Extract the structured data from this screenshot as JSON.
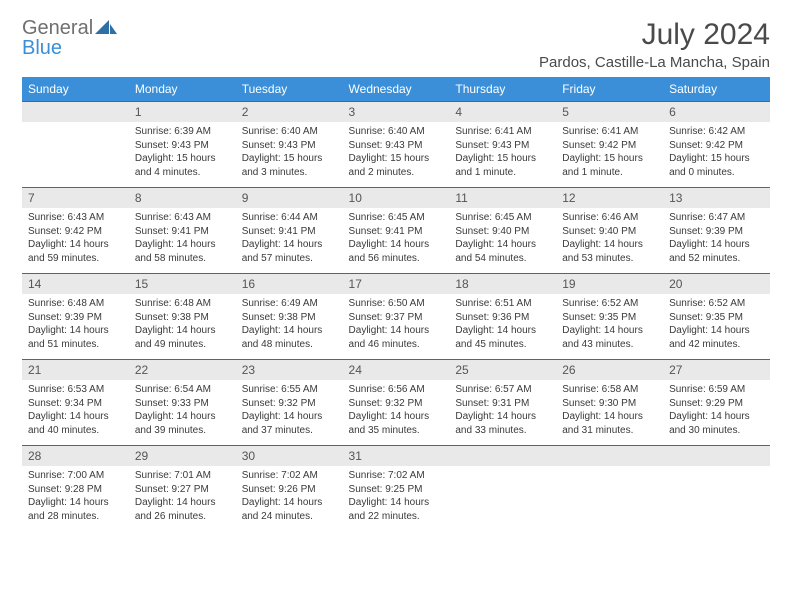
{
  "logo": {
    "general": "General",
    "blue": "Blue",
    "sail_color": "#2e6fa5"
  },
  "title": "July 2024",
  "location": "Pardos, Castille-La Mancha, Spain",
  "colors": {
    "header_bg": "#3a8fd8",
    "header_fg": "#ffffff",
    "daynum_bg": "#e9e9e9",
    "daynum_border": "#2e6fa5",
    "text": "#3a3a3a",
    "title_color": "#4a4a4a"
  },
  "day_headers": [
    "Sunday",
    "Monday",
    "Tuesday",
    "Wednesday",
    "Thursday",
    "Friday",
    "Saturday"
  ],
  "weeks": [
    {
      "nums": [
        "",
        "1",
        "2",
        "3",
        "4",
        "5",
        "6"
      ],
      "cells": [
        {
          "empty": true
        },
        {
          "sunrise": "Sunrise: 6:39 AM",
          "sunset": "Sunset: 9:43 PM",
          "day1": "Daylight: 15 hours",
          "day2": "and 4 minutes."
        },
        {
          "sunrise": "Sunrise: 6:40 AM",
          "sunset": "Sunset: 9:43 PM",
          "day1": "Daylight: 15 hours",
          "day2": "and 3 minutes."
        },
        {
          "sunrise": "Sunrise: 6:40 AM",
          "sunset": "Sunset: 9:43 PM",
          "day1": "Daylight: 15 hours",
          "day2": "and 2 minutes."
        },
        {
          "sunrise": "Sunrise: 6:41 AM",
          "sunset": "Sunset: 9:43 PM",
          "day1": "Daylight: 15 hours",
          "day2": "and 1 minute."
        },
        {
          "sunrise": "Sunrise: 6:41 AM",
          "sunset": "Sunset: 9:42 PM",
          "day1": "Daylight: 15 hours",
          "day2": "and 1 minute."
        },
        {
          "sunrise": "Sunrise: 6:42 AM",
          "sunset": "Sunset: 9:42 PM",
          "day1": "Daylight: 15 hours",
          "day2": "and 0 minutes."
        }
      ]
    },
    {
      "nums": [
        "7",
        "8",
        "9",
        "10",
        "11",
        "12",
        "13"
      ],
      "cells": [
        {
          "sunrise": "Sunrise: 6:43 AM",
          "sunset": "Sunset: 9:42 PM",
          "day1": "Daylight: 14 hours",
          "day2": "and 59 minutes."
        },
        {
          "sunrise": "Sunrise: 6:43 AM",
          "sunset": "Sunset: 9:41 PM",
          "day1": "Daylight: 14 hours",
          "day2": "and 58 minutes."
        },
        {
          "sunrise": "Sunrise: 6:44 AM",
          "sunset": "Sunset: 9:41 PM",
          "day1": "Daylight: 14 hours",
          "day2": "and 57 minutes."
        },
        {
          "sunrise": "Sunrise: 6:45 AM",
          "sunset": "Sunset: 9:41 PM",
          "day1": "Daylight: 14 hours",
          "day2": "and 56 minutes."
        },
        {
          "sunrise": "Sunrise: 6:45 AM",
          "sunset": "Sunset: 9:40 PM",
          "day1": "Daylight: 14 hours",
          "day2": "and 54 minutes."
        },
        {
          "sunrise": "Sunrise: 6:46 AM",
          "sunset": "Sunset: 9:40 PM",
          "day1": "Daylight: 14 hours",
          "day2": "and 53 minutes."
        },
        {
          "sunrise": "Sunrise: 6:47 AM",
          "sunset": "Sunset: 9:39 PM",
          "day1": "Daylight: 14 hours",
          "day2": "and 52 minutes."
        }
      ]
    },
    {
      "nums": [
        "14",
        "15",
        "16",
        "17",
        "18",
        "19",
        "20"
      ],
      "cells": [
        {
          "sunrise": "Sunrise: 6:48 AM",
          "sunset": "Sunset: 9:39 PM",
          "day1": "Daylight: 14 hours",
          "day2": "and 51 minutes."
        },
        {
          "sunrise": "Sunrise: 6:48 AM",
          "sunset": "Sunset: 9:38 PM",
          "day1": "Daylight: 14 hours",
          "day2": "and 49 minutes."
        },
        {
          "sunrise": "Sunrise: 6:49 AM",
          "sunset": "Sunset: 9:38 PM",
          "day1": "Daylight: 14 hours",
          "day2": "and 48 minutes."
        },
        {
          "sunrise": "Sunrise: 6:50 AM",
          "sunset": "Sunset: 9:37 PM",
          "day1": "Daylight: 14 hours",
          "day2": "and 46 minutes."
        },
        {
          "sunrise": "Sunrise: 6:51 AM",
          "sunset": "Sunset: 9:36 PM",
          "day1": "Daylight: 14 hours",
          "day2": "and 45 minutes."
        },
        {
          "sunrise": "Sunrise: 6:52 AM",
          "sunset": "Sunset: 9:35 PM",
          "day1": "Daylight: 14 hours",
          "day2": "and 43 minutes."
        },
        {
          "sunrise": "Sunrise: 6:52 AM",
          "sunset": "Sunset: 9:35 PM",
          "day1": "Daylight: 14 hours",
          "day2": "and 42 minutes."
        }
      ]
    },
    {
      "nums": [
        "21",
        "22",
        "23",
        "24",
        "25",
        "26",
        "27"
      ],
      "cells": [
        {
          "sunrise": "Sunrise: 6:53 AM",
          "sunset": "Sunset: 9:34 PM",
          "day1": "Daylight: 14 hours",
          "day2": "and 40 minutes."
        },
        {
          "sunrise": "Sunrise: 6:54 AM",
          "sunset": "Sunset: 9:33 PM",
          "day1": "Daylight: 14 hours",
          "day2": "and 39 minutes."
        },
        {
          "sunrise": "Sunrise: 6:55 AM",
          "sunset": "Sunset: 9:32 PM",
          "day1": "Daylight: 14 hours",
          "day2": "and 37 minutes."
        },
        {
          "sunrise": "Sunrise: 6:56 AM",
          "sunset": "Sunset: 9:32 PM",
          "day1": "Daylight: 14 hours",
          "day2": "and 35 minutes."
        },
        {
          "sunrise": "Sunrise: 6:57 AM",
          "sunset": "Sunset: 9:31 PM",
          "day1": "Daylight: 14 hours",
          "day2": "and 33 minutes."
        },
        {
          "sunrise": "Sunrise: 6:58 AM",
          "sunset": "Sunset: 9:30 PM",
          "day1": "Daylight: 14 hours",
          "day2": "and 31 minutes."
        },
        {
          "sunrise": "Sunrise: 6:59 AM",
          "sunset": "Sunset: 9:29 PM",
          "day1": "Daylight: 14 hours",
          "day2": "and 30 minutes."
        }
      ]
    },
    {
      "nums": [
        "28",
        "29",
        "30",
        "31",
        "",
        "",
        ""
      ],
      "cells": [
        {
          "sunrise": "Sunrise: 7:00 AM",
          "sunset": "Sunset: 9:28 PM",
          "day1": "Daylight: 14 hours",
          "day2": "and 28 minutes."
        },
        {
          "sunrise": "Sunrise: 7:01 AM",
          "sunset": "Sunset: 9:27 PM",
          "day1": "Daylight: 14 hours",
          "day2": "and 26 minutes."
        },
        {
          "sunrise": "Sunrise: 7:02 AM",
          "sunset": "Sunset: 9:26 PM",
          "day1": "Daylight: 14 hours",
          "day2": "and 24 minutes."
        },
        {
          "sunrise": "Sunrise: 7:02 AM",
          "sunset": "Sunset: 9:25 PM",
          "day1": "Daylight: 14 hours",
          "day2": "and 22 minutes."
        },
        {
          "empty": true
        },
        {
          "empty": true
        },
        {
          "empty": true
        }
      ]
    }
  ]
}
